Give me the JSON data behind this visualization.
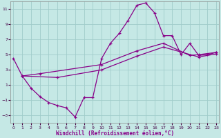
{
  "xlabel": "Windchill (Refroidissement éolien,°C)",
  "bg_color": "#c5e8e5",
  "grid_color": "#a0ccca",
  "line_color": "#880088",
  "xlim": [
    0,
    23
  ],
  "ylim": [
    -4,
    12
  ],
  "yticks": [
    -3,
    -1,
    1,
    3,
    5,
    7,
    9,
    11
  ],
  "xticks": [
    0,
    1,
    2,
    3,
    4,
    5,
    6,
    7,
    8,
    9,
    10,
    11,
    12,
    13,
    14,
    15,
    16,
    17,
    18,
    19,
    20,
    21,
    22,
    23
  ],
  "curve1_x": [
    0,
    1,
    2,
    3,
    4,
    5,
    6,
    7,
    8,
    9,
    10,
    11,
    12,
    13,
    14,
    15,
    16,
    17,
    18,
    19,
    20,
    21,
    22,
    23
  ],
  "curve1_y": [
    4.5,
    2.2,
    0.6,
    -0.5,
    -1.3,
    -1.7,
    -2.0,
    -3.2,
    -0.65,
    -0.65,
    4.5,
    6.5,
    7.8,
    9.5,
    11.5,
    11.8,
    10.5,
    7.5,
    7.5,
    5.0,
    6.5,
    4.9,
    5.0,
    5.3
  ],
  "curve2_x": [
    1,
    3,
    10,
    14,
    17,
    20,
    21,
    23
  ],
  "curve2_y": [
    2.2,
    2.5,
    3.7,
    5.5,
    6.5,
    4.9,
    5.0,
    5.3
  ],
  "curve3_x": [
    1,
    5,
    10,
    14,
    17,
    21,
    23
  ],
  "curve3_y": [
    2.2,
    2.0,
    3.0,
    4.8,
    6.0,
    4.7,
    5.1
  ]
}
